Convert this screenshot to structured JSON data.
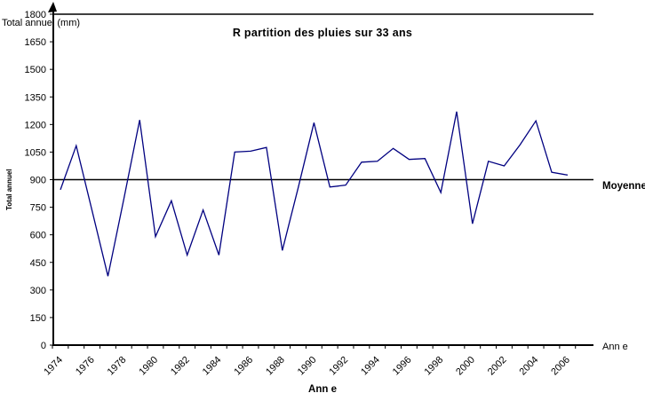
{
  "title": "R partition des pluies sur 33 ans",
  "axis_labels": {
    "top_left": "Total annuel (mm)",
    "left_vertical": "Total annuel",
    "bottom": "Ann e",
    "right_end": "Ann e"
  },
  "mean": {
    "label": "Moyenne",
    "value": 900
  },
  "colors": {
    "line": "#000080",
    "axis": "#000000",
    "background": "#ffffff"
  },
  "chart_data": {
    "type": "line",
    "title": "R partition des pluies sur 33 ans",
    "xlabel": "Ann e",
    "ylabel": "Total annuel (mm)",
    "x": [
      1974,
      1975,
      1976,
      1977,
      1978,
      1979,
      1980,
      1981,
      1982,
      1983,
      1984,
      1985,
      1986,
      1987,
      1988,
      1989,
      1990,
      1991,
      1992,
      1993,
      1994,
      1995,
      1996,
      1997,
      1998,
      1999,
      2000,
      2001,
      2002,
      2003,
      2004,
      2005,
      2006
    ],
    "series": [
      {
        "name": "Total annuel (mm)",
        "values": [
          845,
          1085,
          730,
          375,
          795,
          1225,
          590,
          785,
          490,
          735,
          490,
          1050,
          1055,
          1075,
          515,
          855,
          1210,
          860,
          870,
          995,
          1000,
          1070,
          1010,
          1015,
          830,
          1270,
          660,
          1000,
          975,
          1090,
          1220,
          940,
          925
        ]
      }
    ],
    "mean_line_value": 900,
    "ylim": [
      0,
      1800
    ],
    "y_ticks": [
      0,
      150,
      300,
      450,
      600,
      750,
      900,
      1050,
      1200,
      1350,
      1500,
      1650,
      1800
    ],
    "x_tick_labels": [
      "1974",
      "1976",
      "1978",
      "1980",
      "1982",
      "1984",
      "1986",
      "1988",
      "1990",
      "1992",
      "1994",
      "1996",
      "1998",
      "2000",
      "2002",
      "2004",
      "2006"
    ],
    "grid": "off",
    "legend_position": "none"
  }
}
